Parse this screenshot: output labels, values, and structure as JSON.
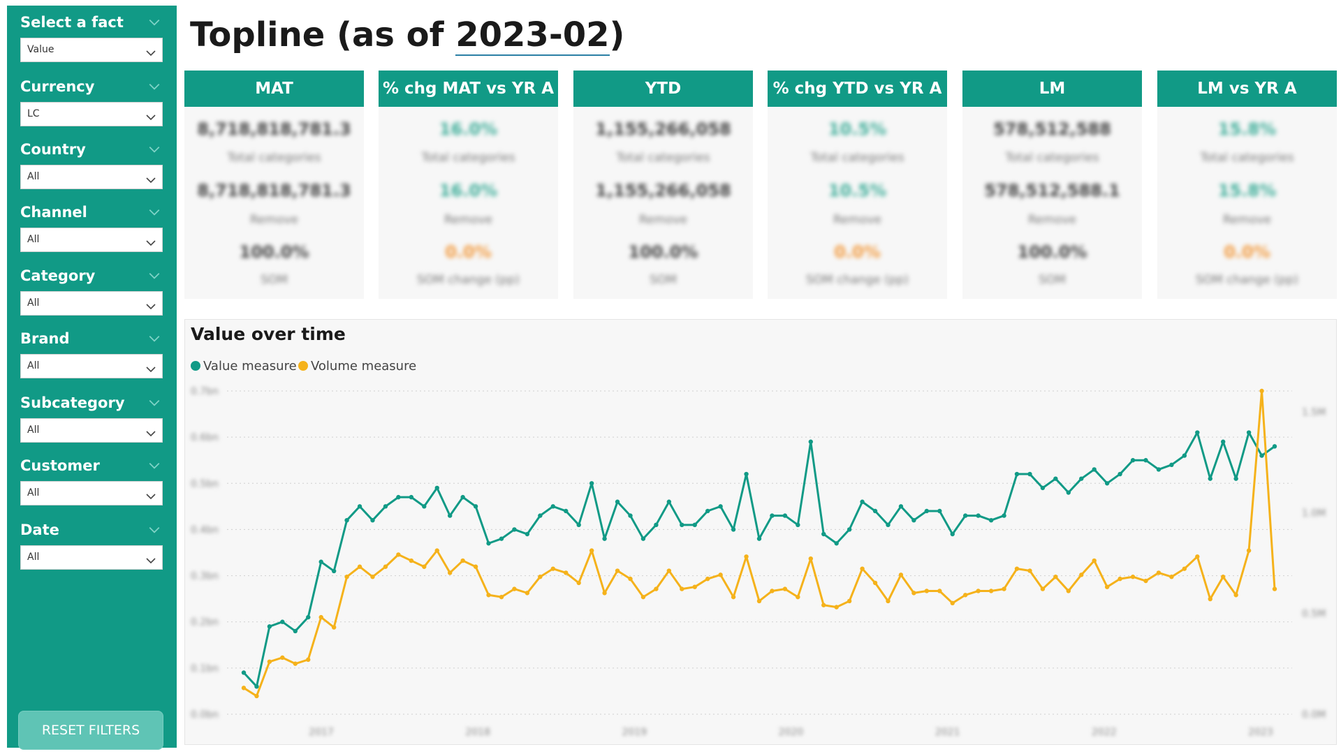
{
  "sidebar": {
    "filters": [
      {
        "title": "Select a fact",
        "value": "Value"
      },
      {
        "title": "Currency",
        "value": "LC"
      },
      {
        "title": "Country",
        "value": "All"
      },
      {
        "title": "Channel",
        "value": "All"
      },
      {
        "title": "Category",
        "value": "All"
      },
      {
        "title": "Brand",
        "value": "All"
      },
      {
        "title": "Subcategory",
        "value": "All"
      },
      {
        "title": "Customer",
        "value": "All"
      },
      {
        "title": "Date",
        "value": "All"
      }
    ],
    "reset_label": "RESET FILTERS"
  },
  "header": {
    "title_prefix": "Topline (as of ",
    "title_date": "2023-02",
    "title_suffix": ")"
  },
  "kpis": [
    {
      "label": "MAT",
      "v1": "8,718,818,781.3",
      "l1": "Total categories",
      "v2": "8,718,818,781.3",
      "l2": "Remove",
      "v3": "100.0%",
      "l3": "SOM"
    },
    {
      "label": "% chg MAT vs YR A",
      "v1": "16.0%",
      "l1": "Total categories",
      "v2": "16.0%",
      "l2": "Remove",
      "v3": "0.0%",
      "l3": "SOM change (pp)"
    },
    {
      "label": "YTD",
      "v1": "1,155,266,058",
      "l1": "Total categories",
      "v2": "1,155,266,058",
      "l2": "Remove",
      "v3": "100.0%",
      "l3": "SOM"
    },
    {
      "label": "% chg YTD vs YR A",
      "v1": "10.5%",
      "l1": "Total categories",
      "v2": "10.5%",
      "l2": "Remove",
      "v3": "0.0%",
      "l3": "SOM change (pp)"
    },
    {
      "label": "LM",
      "v1": "578,512,588",
      "l1": "Total categories",
      "v2": "578,512,588.1",
      "l2": "Remove",
      "v3": "100.0%",
      "l3": "SOM"
    },
    {
      "label": "LM vs YR A",
      "v1": "15.8%",
      "l1": "Total categories",
      "v2": "15.8%",
      "l2": "Remove",
      "v3": "0.0%",
      "l3": "SOM change (pp)"
    }
  ],
  "chart_data": {
    "type": "line",
    "title": "Value over time",
    "legend_position": "top-left",
    "grid": true,
    "colors": {
      "value": "#119a86",
      "volume": "#f5b21b"
    },
    "x_tick_labels": [
      "2017",
      "2018",
      "2019",
      "2020",
      "2021",
      "2022",
      "2023"
    ],
    "y_left_tick_labels": [
      "0.7bn",
      "0.6bn",
      "0.5bn",
      "0.4bn",
      "0.3bn",
      "0.2bn",
      "0.1bn",
      "0.0bn"
    ],
    "y_right_tick_labels": [
      "1.5M",
      "1.0M",
      "0.5M",
      "0.0M"
    ],
    "ylim_left": [
      0.0,
      0.7
    ],
    "ylim_right": [
      0.0,
      1.6
    ],
    "series": [
      {
        "name": "Value measure",
        "axis": "left",
        "values": [
          0.09,
          0.06,
          0.19,
          0.2,
          0.18,
          0.21,
          0.33,
          0.31,
          0.42,
          0.45,
          0.42,
          0.45,
          0.47,
          0.47,
          0.45,
          0.49,
          0.43,
          0.47,
          0.45,
          0.37,
          0.38,
          0.4,
          0.39,
          0.43,
          0.45,
          0.44,
          0.41,
          0.5,
          0.38,
          0.46,
          0.43,
          0.38,
          0.41,
          0.46,
          0.41,
          0.41,
          0.44,
          0.45,
          0.4,
          0.52,
          0.38,
          0.43,
          0.43,
          0.41,
          0.59,
          0.39,
          0.37,
          0.4,
          0.46,
          0.44,
          0.41,
          0.45,
          0.42,
          0.44,
          0.44,
          0.39,
          0.43,
          0.43,
          0.42,
          0.43,
          0.52,
          0.52,
          0.49,
          0.51,
          0.48,
          0.51,
          0.53,
          0.5,
          0.52,
          0.55,
          0.55,
          0.53,
          0.54,
          0.56,
          0.61,
          0.51,
          0.59,
          0.51,
          0.61,
          0.56,
          0.58
        ]
      },
      {
        "name": "Volume measure",
        "axis": "right",
        "values": [
          0.13,
          0.09,
          0.26,
          0.28,
          0.25,
          0.27,
          0.48,
          0.43,
          0.68,
          0.73,
          0.68,
          0.73,
          0.79,
          0.76,
          0.73,
          0.81,
          0.7,
          0.76,
          0.73,
          0.59,
          0.58,
          0.62,
          0.6,
          0.68,
          0.72,
          0.7,
          0.65,
          0.81,
          0.6,
          0.71,
          0.67,
          0.58,
          0.62,
          0.71,
          0.62,
          0.63,
          0.67,
          0.69,
          0.58,
          0.78,
          0.56,
          0.61,
          0.62,
          0.58,
          0.77,
          0.54,
          0.53,
          0.56,
          0.72,
          0.65,
          0.56,
          0.69,
          0.6,
          0.61,
          0.61,
          0.55,
          0.59,
          0.61,
          0.61,
          0.62,
          0.72,
          0.71,
          0.62,
          0.68,
          0.61,
          0.69,
          0.76,
          0.63,
          0.67,
          0.68,
          0.66,
          0.7,
          0.68,
          0.72,
          0.78,
          0.57,
          0.68,
          0.59,
          0.81,
          1.6,
          0.62
        ]
      }
    ]
  }
}
